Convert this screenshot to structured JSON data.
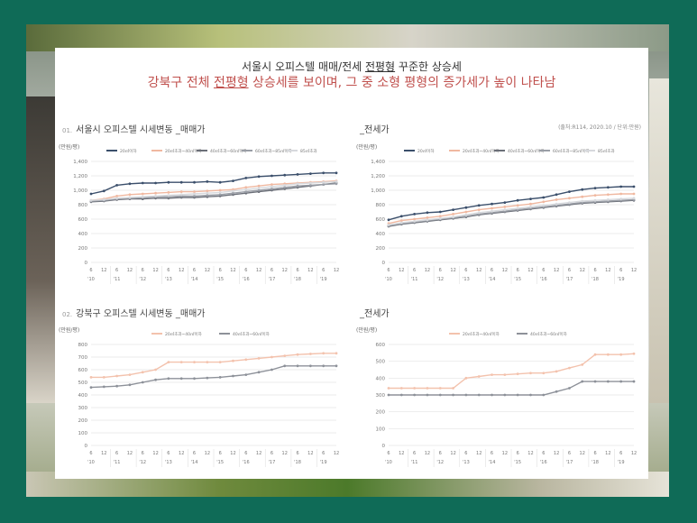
{
  "header": {
    "line1_pre": "서울시 오피스텔 매매/전세 ",
    "line1_u": "전평형",
    "line1_post": " 꾸준한 상승세",
    "line2_pre": "강북구 전체 ",
    "line2_u": "전평형",
    "line2_post": " 상승세를 보이며, 그 중 소형 평형의 증가세가 높이 나타남"
  },
  "sections": {
    "top_left": {
      "no": "01.",
      "title": "서울시 오피스텔 시세변동 _매매가"
    },
    "top_right": {
      "no": "",
      "title": "_전세가"
    },
    "bottom_left": {
      "no": "02.",
      "title": "강북구 오피스텔 시세변동 _매매가"
    },
    "bottom_right": {
      "no": "",
      "title": "_전세가"
    }
  },
  "source": "(출처:R114, 2020.10 / 단위:만원)",
  "colors": {
    "accent": "#c0504d",
    "s1": "#3b4f6b",
    "s2": "#f0b8a0",
    "s3": "#6b6f78",
    "s4": "#9a9ea6",
    "s5": "#d7d9dd",
    "b1": "#f3c2ad",
    "b2": "#8d9199"
  },
  "chart_data": [
    {
      "type": "line",
      "ylabel": "(만원/평)",
      "ylim": [
        0,
        1400
      ],
      "yticks": [
        0,
        200,
        400,
        600,
        800,
        1000,
        1200,
        1400
      ],
      "x": [
        "6",
        "12",
        "6",
        "12",
        "6",
        "12",
        "6",
        "12",
        "6",
        "12",
        "6",
        "12",
        "6",
        "12",
        "6",
        "12",
        "6",
        "12",
        "6",
        "12"
      ],
      "years": [
        "'10",
        "'11",
        "'12",
        "'13",
        "'14",
        "'15",
        "'16",
        "'17",
        "'18",
        "'19"
      ],
      "series": [
        {
          "name": "20㎡이하",
          "color": "#3b4f6b",
          "values": [
            950,
            990,
            1070,
            1090,
            1100,
            1100,
            1110,
            1110,
            1110,
            1120,
            1110,
            1130,
            1170,
            1190,
            1200,
            1210,
            1220,
            1230,
            1240,
            1240
          ]
        },
        {
          "name": "20㎡초과~40㎡이하",
          "color": "#f0b8a0",
          "values": [
            860,
            880,
            920,
            940,
            950,
            960,
            970,
            980,
            980,
            990,
            1000,
            1010,
            1040,
            1060,
            1080,
            1090,
            1100,
            1110,
            1120,
            1130
          ]
        },
        {
          "name": "40㎡초과~60㎡이하",
          "color": "#6b6f78",
          "values": [
            840,
            850,
            870,
            880,
            880,
            890,
            890,
            900,
            900,
            910,
            920,
            940,
            960,
            980,
            1000,
            1020,
            1040,
            1060,
            1080,
            1100
          ]
        },
        {
          "name": "60㎡초과~85㎡이하",
          "color": "#9a9ea6",
          "values": [
            850,
            860,
            880,
            890,
            900,
            910,
            910,
            920,
            920,
            930,
            940,
            960,
            980,
            1000,
            1020,
            1040,
            1060,
            1070,
            1080,
            1090
          ]
        },
        {
          "name": "85㎡초과",
          "color": "#d7d9dd",
          "values": [
            860,
            870,
            890,
            900,
            910,
            920,
            930,
            940,
            950,
            960,
            970,
            990,
            1010,
            1030,
            1050,
            1070,
            1090,
            1100,
            1110,
            1120
          ]
        }
      ]
    },
    {
      "type": "line",
      "ylabel": "(만원/평)",
      "ylim": [
        0,
        1400
      ],
      "yticks": [
        0,
        200,
        400,
        600,
        800,
        1000,
        1200,
        1400
      ],
      "x": [
        "6",
        "12",
        "6",
        "12",
        "6",
        "12",
        "6",
        "12",
        "6",
        "12",
        "6",
        "12",
        "6",
        "12",
        "6",
        "12",
        "6",
        "12",
        "6",
        "12"
      ],
      "years": [
        "'10",
        "'11",
        "'12",
        "'13",
        "'14",
        "'15",
        "'16",
        "'17",
        "'18",
        "'19"
      ],
      "series": [
        {
          "name": "20㎡이하",
          "color": "#3b4f6b",
          "values": [
            590,
            640,
            670,
            690,
            700,
            730,
            760,
            790,
            810,
            830,
            860,
            880,
            900,
            940,
            980,
            1010,
            1030,
            1040,
            1050,
            1050
          ]
        },
        {
          "name": "20㎡초과~40㎡이하",
          "color": "#f0b8a0",
          "values": [
            540,
            580,
            600,
            620,
            640,
            670,
            700,
            730,
            750,
            770,
            790,
            810,
            840,
            870,
            890,
            910,
            930,
            940,
            950,
            950
          ]
        },
        {
          "name": "40㎡초과~60㎡이하",
          "color": "#6b6f78",
          "values": [
            500,
            530,
            550,
            570,
            590,
            610,
            630,
            660,
            680,
            700,
            720,
            740,
            760,
            780,
            800,
            820,
            830,
            840,
            850,
            860
          ]
        },
        {
          "name": "60㎡초과~85㎡이하",
          "color": "#9a9ea6",
          "values": [
            510,
            540,
            560,
            580,
            600,
            620,
            640,
            670,
            690,
            710,
            730,
            750,
            770,
            790,
            810,
            830,
            840,
            850,
            860,
            870
          ]
        },
        {
          "name": "85㎡초과",
          "color": "#d7d9dd",
          "values": [
            520,
            550,
            570,
            590,
            610,
            630,
            660,
            690,
            710,
            730,
            750,
            770,
            790,
            810,
            830,
            850,
            860,
            870,
            880,
            890
          ]
        }
      ]
    },
    {
      "type": "line",
      "ylabel": "(만원/평)",
      "ylim": [
        0,
        800
      ],
      "yticks": [
        0,
        100,
        200,
        300,
        400,
        500,
        600,
        700,
        800
      ],
      "x": [
        "6",
        "12",
        "6",
        "12",
        "6",
        "12",
        "6",
        "12",
        "6",
        "12",
        "6",
        "12",
        "6",
        "12",
        "6",
        "12",
        "6",
        "12",
        "6",
        "12"
      ],
      "years": [
        "'10",
        "'11",
        "'12",
        "'13",
        "'14",
        "'15",
        "'16",
        "'17",
        "'18",
        "'19"
      ],
      "series": [
        {
          "name": "20㎡초과~40㎡이하",
          "color": "#f3c2ad",
          "values": [
            540,
            540,
            550,
            560,
            580,
            600,
            660,
            660,
            660,
            660,
            660,
            670,
            680,
            690,
            700,
            710,
            720,
            725,
            730,
            730
          ]
        },
        {
          "name": "40㎡초과~60㎡이하",
          "color": "#8d9199",
          "values": [
            460,
            465,
            470,
            480,
            500,
            520,
            530,
            530,
            530,
            535,
            540,
            550,
            560,
            580,
            600,
            630,
            630,
            630,
            630,
            630
          ]
        }
      ]
    },
    {
      "type": "line",
      "ylabel": "(만원/평)",
      "ylim": [
        0,
        600
      ],
      "yticks": [
        0,
        100,
        200,
        300,
        400,
        500,
        600
      ],
      "x": [
        "6",
        "12",
        "6",
        "12",
        "6",
        "12",
        "6",
        "12",
        "6",
        "12",
        "6",
        "12",
        "6",
        "12",
        "6",
        "12",
        "6",
        "12",
        "6",
        "12"
      ],
      "years": [
        "'10",
        "'11",
        "'12",
        "'13",
        "'14",
        "'15",
        "'16",
        "'17",
        "'18",
        "'19"
      ],
      "series": [
        {
          "name": "20㎡초과~40㎡이하",
          "color": "#f3c2ad",
          "values": [
            340,
            340,
            340,
            340,
            340,
            340,
            400,
            410,
            420,
            420,
            425,
            430,
            430,
            440,
            460,
            480,
            540,
            540,
            540,
            545
          ]
        },
        {
          "name": "40㎡초과~60㎡이하",
          "color": "#8d9199",
          "values": [
            300,
            300,
            300,
            300,
            300,
            300,
            300,
            300,
            300,
            300,
            300,
            300,
            300,
            320,
            340,
            380,
            380,
            380,
            380,
            380
          ]
        }
      ]
    }
  ]
}
